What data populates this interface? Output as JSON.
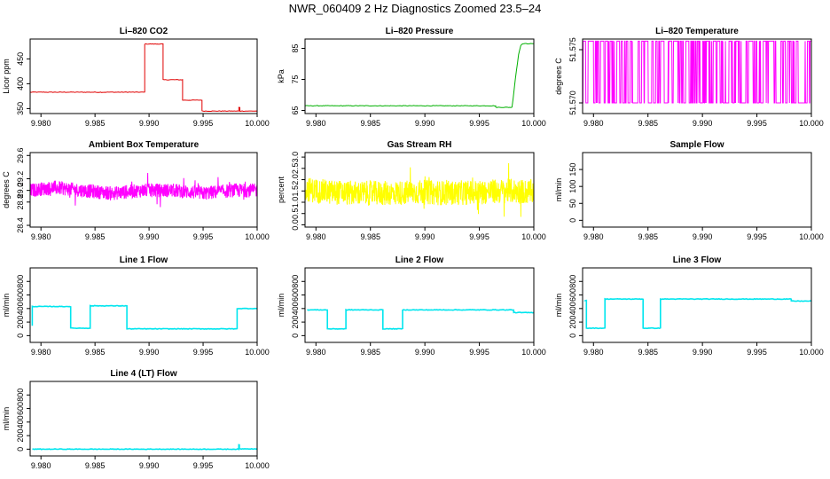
{
  "title": "NWR_060409  2 Hz Diagnostics Zoomed 23.5–24",
  "colors": {
    "red": "#e00000",
    "green": "#00b000",
    "magenta": "#ff00ff",
    "yellow": "#ffff00",
    "cyan": "#00e5ee",
    "axis": "#000000"
  },
  "chart_data": [
    {
      "type": "line",
      "title": "Li–820 CO2",
      "ylabel": "Licor ppm",
      "color": "#e00000",
      "xlim": [
        9.979,
        10.0
      ],
      "ylim": [
        340,
        490
      ],
      "xticks": [
        9.98,
        9.985,
        9.99,
        9.995,
        10.0
      ],
      "xtick_labels": [
        "9.980",
        "9.985",
        "9.990",
        "9.995",
        "10.000"
      ],
      "yticks": [
        350,
        400,
        450
      ],
      "ytick_labels": [
        "350",
        "400",
        "450"
      ],
      "series": [
        {
          "x": [
            9.979,
            9.9896,
            9.9896,
            9.9913,
            9.9913,
            9.9931,
            9.9931,
            9.9949,
            9.9949,
            9.9983,
            9.9983,
            9.9984,
            9.9984,
            10.0
          ],
          "y": [
            383,
            383,
            480,
            480,
            408,
            408,
            367,
            367,
            345,
            345,
            352,
            352,
            345,
            345
          ]
        }
      ]
    },
    {
      "type": "line",
      "title": "Li–820 Pressure",
      "ylabel": "kPa",
      "color": "#00b000",
      "xlim": [
        9.979,
        10.0
      ],
      "ylim": [
        64,
        88
      ],
      "xticks": [
        9.98,
        9.985,
        9.99,
        9.995,
        10.0
      ],
      "xtick_labels": [
        "9.980",
        "9.985",
        "9.990",
        "9.995",
        "10.000"
      ],
      "yticks": [
        65,
        75,
        85
      ],
      "ytick_labels": [
        "65",
        "75",
        "85"
      ],
      "series": [
        {
          "x": [
            9.979,
            9.9965,
            9.9965,
            9.998,
            9.9983,
            9.9986,
            9.9988,
            9.999,
            10.0
          ],
          "y": [
            66.5,
            66.5,
            66,
            66,
            75,
            83,
            86,
            86.5,
            86.5
          ]
        }
      ]
    },
    {
      "type": "line",
      "title": "Li–820 Temperature",
      "ylabel": "degrees C",
      "color": "#ff00ff",
      "xlim": [
        9.979,
        10.0
      ],
      "ylim": [
        51.569,
        51.576
      ],
      "xticks": [
        9.98,
        9.985,
        9.99,
        9.995,
        10.0
      ],
      "xtick_labels": [
        "9.980",
        "9.985",
        "9.990",
        "9.995",
        "10.000"
      ],
      "yticks": [
        51.57,
        51.575
      ],
      "ytick_labels": [
        "51.570",
        "51.575"
      ],
      "series": [
        {
          "x": [
            9.979,
            9.9798,
            9.9806,
            9.9815,
            9.9826,
            9.9842,
            9.9858,
            9.9871,
            9.9884,
            9.9902,
            9.9914,
            9.9931,
            9.9941,
            9.9952,
            9.9962,
            9.9968,
            9.9975,
            9.9985,
            9.9993,
            10.0
          ],
          "y": [
            51.57,
            51.5758,
            51.57,
            51.5758,
            51.57,
            51.5758,
            51.57,
            51.5758,
            51.57,
            51.5758,
            51.57,
            51.5758,
            51.57,
            51.5758,
            51.57,
            51.5758,
            51.57,
            51.5758,
            51.57,
            51.5758
          ]
        }
      ]
    },
    {
      "type": "line",
      "title": "Ambient Box Temperature",
      "ylabel": "degrees C",
      "color": "#ff00ff",
      "xlim": [
        9.979,
        10.0
      ],
      "ylim": [
        28.37,
        29.65
      ],
      "xticks": [
        9.98,
        9.985,
        9.99,
        9.995,
        10.0
      ],
      "xtick_labels": [
        "9.980",
        "9.985",
        "9.990",
        "9.995",
        "10.000"
      ],
      "yticks": [
        28.4,
        28.8,
        29.0,
        29.2,
        29.6
      ],
      "ytick_labels": [
        "28.4",
        "28.8",
        "29.0",
        "29.2",
        "29.6"
      ],
      "series": [
        {
          "x": [
            9.979,
            9.9812,
            9.9838,
            9.9866,
            9.9894,
            9.9922,
            9.995,
            9.9978,
            10.0
          ],
          "y": [
            29.0,
            29.05,
            29.0,
            28.95,
            29.0,
            29.0,
            28.95,
            29.0,
            29.0
          ]
        }
      ]
    },
    {
      "type": "line",
      "title": "Gas Stream RH",
      "ylabel": "percent",
      "color": "#ffff00",
      "xlim": [
        9.979,
        10.0
      ],
      "ylim": [
        -0.1,
        3.2
      ],
      "xticks": [
        9.98,
        9.985,
        9.99,
        9.995,
        10.0
      ],
      "xtick_labels": [
        "9.980",
        "9.985",
        "9.990",
        "9.995",
        "10.000"
      ],
      "yticks": [
        0.0,
        0.5,
        1.0,
        1.5,
        2.0,
        2.5,
        3.0
      ],
      "ytick_labels": [
        "0.0",
        "0.5",
        "1.0",
        "1.5",
        "2.0",
        "2.5",
        "3.0"
      ],
      "series": [
        {
          "x": [
            9.979,
            9.98,
            9.9812,
            9.9838,
            9.9866,
            9.9894,
            9.9922,
            9.995,
            9.9978,
            10.0
          ],
          "y": [
            1.6,
            1.5,
            1.45,
            1.4,
            1.4,
            1.45,
            1.4,
            1.45,
            1.5,
            1.45
          ]
        }
      ]
    },
    {
      "type": "line",
      "title": "Sample Flow",
      "ylabel": "ml/min",
      "color": "#00e5ee",
      "xlim": [
        9.979,
        10.0
      ],
      "ylim": [
        -20,
        200
      ],
      "xticks": [
        9.98,
        9.985,
        9.99,
        9.995,
        10.0
      ],
      "xtick_labels": [
        "9.980",
        "9.985",
        "9.990",
        "9.995",
        "10.000"
      ],
      "yticks": [
        0,
        50,
        100,
        150
      ],
      "ytick_labels": [
        "0",
        "50",
        "100",
        "150"
      ],
      "series": []
    },
    {
      "type": "line",
      "title": "Line 1 Flow",
      "ylabel": "ml/min",
      "color": "#00e5ee",
      "xlim": [
        9.979,
        10.0
      ],
      "ylim": [
        -100,
        1000
      ],
      "xticks": [
        9.98,
        9.985,
        9.99,
        9.995,
        10.0
      ],
      "xtick_labels": [
        "9.980",
        "9.985",
        "9.990",
        "9.995",
        "10.000"
      ],
      "yticks": [
        0,
        200,
        400,
        600,
        800
      ],
      "ytick_labels": [
        "0",
        "200",
        "400",
        "600",
        "800"
      ],
      "series": [
        {
          "x": [
            9.9792,
            9.9792,
            9.98275,
            9.98275,
            9.98455,
            9.98455,
            9.98795,
            9.98795,
            9.99815,
            9.99815,
            10.0
          ],
          "y": [
            150,
            430,
            430,
            110,
            110,
            440,
            440,
            100,
            100,
            400,
            400
          ]
        }
      ]
    },
    {
      "type": "line",
      "title": "Line 2 Flow",
      "ylabel": "ml/min",
      "color": "#00e5ee",
      "xlim": [
        9.979,
        10.0
      ],
      "ylim": [
        -100,
        1000
      ],
      "xticks": [
        9.98,
        9.985,
        9.99,
        9.995,
        10.0
      ],
      "xtick_labels": [
        "9.980",
        "9.985",
        "9.990",
        "9.995",
        "10.000"
      ],
      "yticks": [
        0,
        200,
        400,
        600,
        800
      ],
      "ytick_labels": [
        "0",
        "200",
        "400",
        "600",
        "800"
      ],
      "series": [
        {
          "x": [
            9.9792,
            9.98105,
            9.98105,
            9.98275,
            9.98275,
            9.98615,
            9.98615,
            9.98795,
            9.98795,
            9.99815,
            9.99815,
            10.0
          ],
          "y": [
            380,
            380,
            100,
            100,
            380,
            380,
            100,
            100,
            380,
            380,
            340,
            340
          ]
        }
      ]
    },
    {
      "type": "line",
      "title": "Line 3 Flow",
      "ylabel": "ml/min",
      "color": "#00e5ee",
      "xlim": [
        9.979,
        10.0
      ],
      "ylim": [
        -100,
        1000
      ],
      "xticks": [
        9.98,
        9.985,
        9.99,
        9.995,
        10.0
      ],
      "xtick_labels": [
        "9.980",
        "9.985",
        "9.990",
        "9.995",
        "10.000"
      ],
      "yticks": [
        0,
        200,
        400,
        600,
        800
      ],
      "ytick_labels": [
        "0",
        "200",
        "400",
        "600",
        "800"
      ],
      "series": [
        {
          "x": [
            9.9792,
            9.9792,
            9.97935,
            9.97935,
            9.98105,
            9.98105,
            9.98455,
            9.98455,
            9.98615,
            9.98615,
            9.99815,
            9.99815,
            10.0
          ],
          "y": [
            520,
            520,
            520,
            110,
            110,
            540,
            540,
            110,
            110,
            540,
            540,
            510,
            510
          ]
        }
      ]
    },
    {
      "type": "line",
      "title": "Line 4 (LT) Flow",
      "ylabel": "ml/min",
      "color": "#00e5ee",
      "xlim": [
        9.979,
        10.0
      ],
      "ylim": [
        -100,
        1000
      ],
      "xticks": [
        9.98,
        9.985,
        9.99,
        9.995,
        10.0
      ],
      "xtick_labels": [
        "9.980",
        "9.985",
        "9.990",
        "9.995",
        "10.000"
      ],
      "yticks": [
        0,
        200,
        400,
        600,
        800
      ],
      "ytick_labels": [
        "0",
        "200",
        "400",
        "600",
        "800"
      ],
      "series": [
        {
          "x": [
            9.9792,
            9.9983,
            9.9983,
            9.99835,
            9.99835,
            10.0
          ],
          "y": [
            0,
            0,
            60,
            60,
            5,
            5
          ]
        }
      ]
    }
  ]
}
